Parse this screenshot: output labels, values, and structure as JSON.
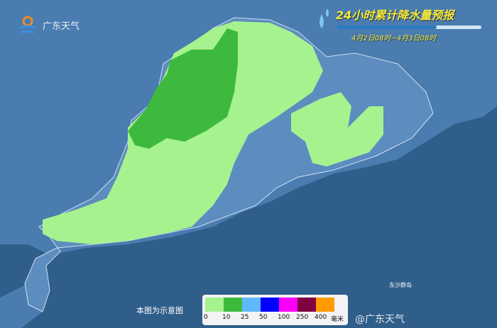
{
  "header": {
    "logo_text": "广东天气",
    "title": "24小时累计降水量预报",
    "subtitle": "4月2日08时~4月3日08时"
  },
  "map": {
    "note": "本图为示意图",
    "island_label": "东沙群岛",
    "watermark": "@广东天气",
    "colors": {
      "sea": "#2f5e8a",
      "land": "#4a7cb0",
      "light_rain": "#a6f28f",
      "moderate_rain": "#3dba3d"
    }
  },
  "legend": {
    "unit": "毫米",
    "ticks": [
      "0",
      "10",
      "25",
      "50",
      "100",
      "250",
      "400"
    ],
    "colors": [
      "#a6f28f",
      "#3dba3d",
      "#61b8ff",
      "#0000fe",
      "#fa00fa",
      "#800040",
      "#ff9a00"
    ]
  }
}
